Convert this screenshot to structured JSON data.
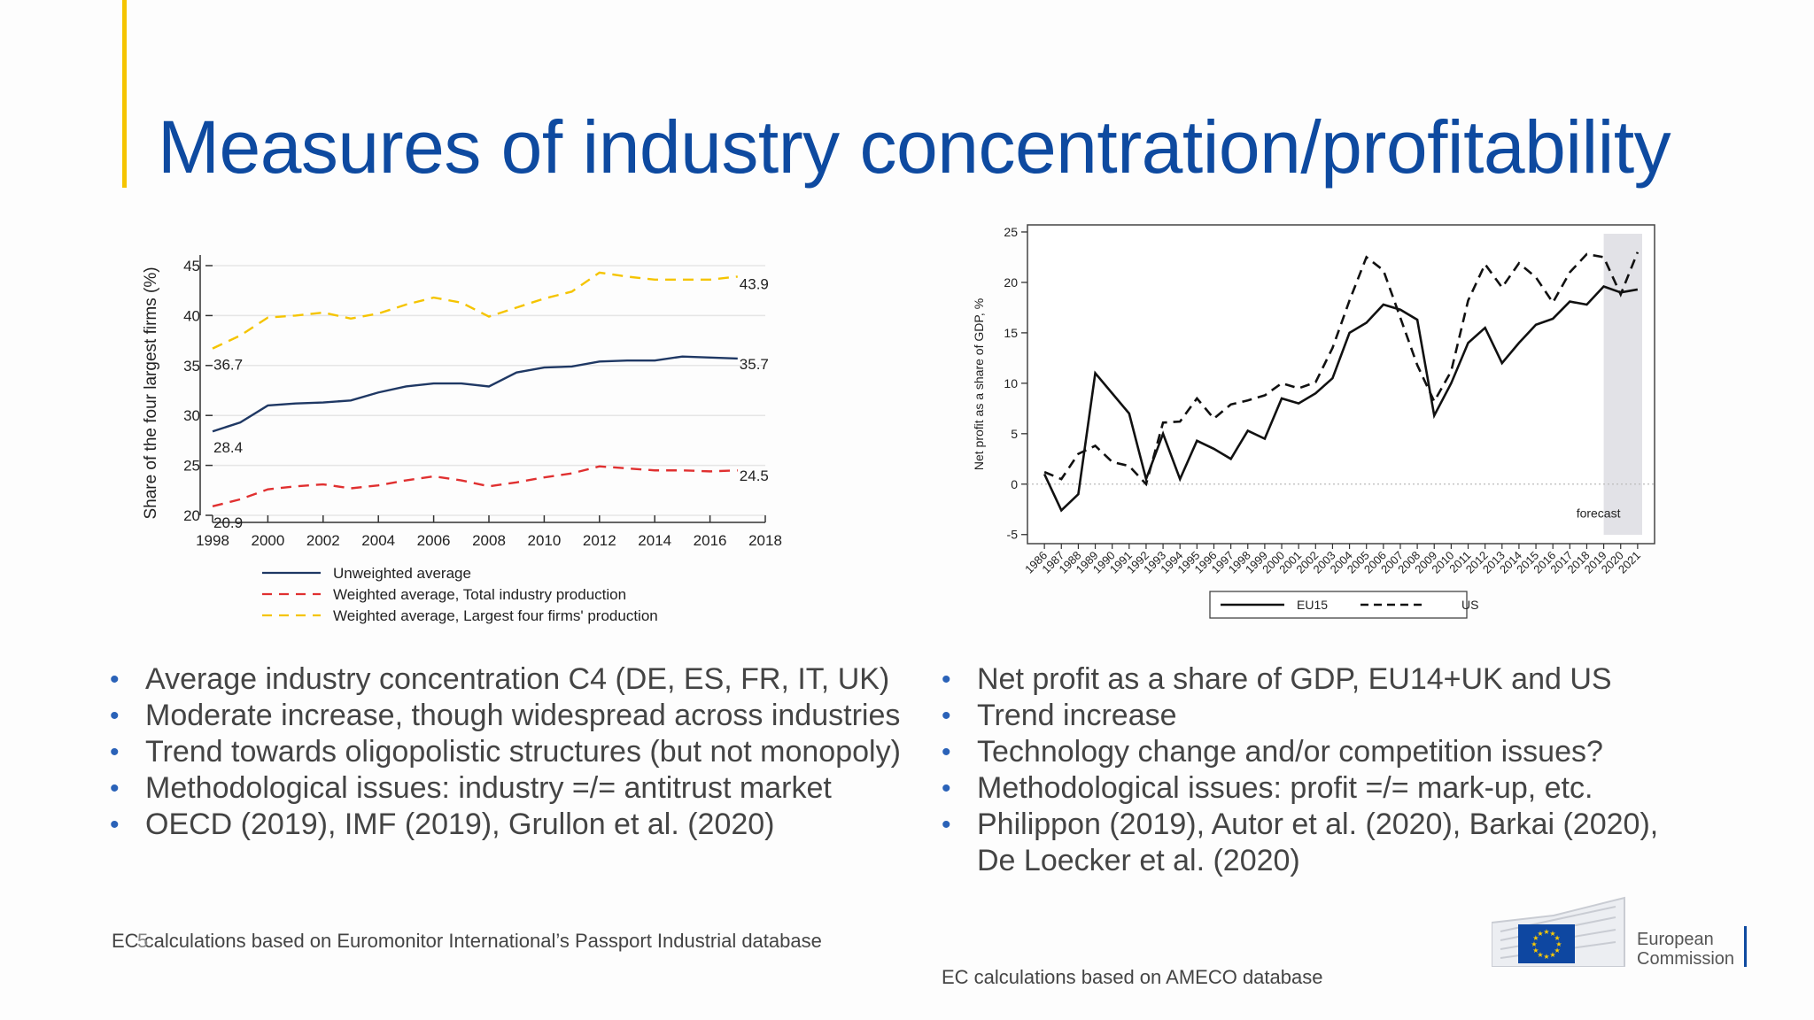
{
  "title": "Measures of industry concentration/profitability",
  "slide_number": "5",
  "chart_data": [
    {
      "type": "line",
      "title": "",
      "ylabel": "Share of the four largest firms   (%)",
      "xlabel": "",
      "x": [
        1998,
        1999,
        2000,
        2001,
        2002,
        2003,
        2004,
        2005,
        2006,
        2007,
        2008,
        2009,
        2010,
        2011,
        2012,
        2013,
        2014,
        2015,
        2016,
        2017
      ],
      "xticks": [
        "1998",
        "2000",
        "2002",
        "2004",
        "2006",
        "2008",
        "2010",
        "2012",
        "2014",
        "2016",
        "2018"
      ],
      "yticks": [
        "20",
        "25",
        "30",
        "35",
        "40",
        "45"
      ],
      "xlim": [
        1998,
        2018
      ],
      "ylim": [
        20,
        45
      ],
      "grid": true,
      "legend_position": "bottom",
      "series": [
        {
          "name": "Unweighted average",
          "color": "#1f3864",
          "dash": "solid",
          "values": [
            28.4,
            29.3,
            31.0,
            31.2,
            31.3,
            31.5,
            32.3,
            32.9,
            33.2,
            33.2,
            32.9,
            34.3,
            34.8,
            34.9,
            35.4,
            35.5,
            35.5,
            35.9,
            35.8,
            35.7
          ],
          "start_label": "28.4",
          "end_label": "35.7"
        },
        {
          "name": "Weighted average, Total industry production",
          "color": "#e03030",
          "dash": "dashed",
          "values": [
            20.9,
            21.6,
            22.6,
            22.9,
            23.1,
            22.7,
            23.0,
            23.5,
            23.9,
            23.5,
            22.9,
            23.3,
            23.8,
            24.2,
            24.9,
            24.7,
            24.5,
            24.5,
            24.4,
            24.5
          ],
          "start_label": "20.9",
          "end_label": "24.5"
        },
        {
          "name": "Weighted average, Largest four firms' production",
          "color": "#f5c400",
          "dash": "dashed",
          "values": [
            36.7,
            38.0,
            39.8,
            40.0,
            40.3,
            39.7,
            40.2,
            41.1,
            41.8,
            41.3,
            39.9,
            40.8,
            41.7,
            42.4,
            44.3,
            43.9,
            43.6,
            43.6,
            43.6,
            43.9
          ],
          "start_label": "36.7",
          "end_label": "43.9"
        }
      ]
    },
    {
      "type": "line",
      "title": "",
      "ylabel": "Net profit as a share of GDP, %",
      "xlabel": "",
      "x": [
        1986,
        1987,
        1988,
        1989,
        1990,
        1991,
        1992,
        1993,
        1994,
        1995,
        1996,
        1997,
        1998,
        1999,
        2000,
        2001,
        2002,
        2003,
        2004,
        2005,
        2006,
        2007,
        2008,
        2009,
        2010,
        2011,
        2012,
        2013,
        2014,
        2015,
        2016,
        2017,
        2018,
        2019,
        2020,
        2021
      ],
      "xticks": [
        "1986",
        "1987",
        "1988",
        "1989",
        "1990",
        "1991",
        "1992",
        "1993",
        "1994",
        "1995",
        "1996",
        "1997",
        "1998",
        "1999",
        "2000",
        "2001",
        "2002",
        "2003",
        "2004",
        "2005",
        "2006",
        "2007",
        "2008",
        "2009",
        "2010",
        "2011",
        "2012",
        "2013",
        "2014",
        "2015",
        "2016",
        "2017",
        "2018",
        "2019",
        "2020",
        "2021"
      ],
      "yticks": [
        "-5",
        "0",
        "5",
        "10",
        "15",
        "20",
        "25"
      ],
      "xlim": [
        1985,
        2022
      ],
      "ylim": [
        -5,
        25
      ],
      "grid": false,
      "legend_position": "bottom",
      "forecast_region": [
        2019,
        2022
      ],
      "forecast_label": "forecast",
      "series": [
        {
          "name": "EU15",
          "color": "#111111",
          "dash": "solid",
          "values": [
            1.0,
            -2.6,
            -1.0,
            11.0,
            9.0,
            7.0,
            0.5,
            5.0,
            0.5,
            4.3,
            3.5,
            2.5,
            5.3,
            4.5,
            8.5,
            8.0,
            9.0,
            10.5,
            15.0,
            16.0,
            17.8,
            17.3,
            16.3,
            6.8,
            10.0,
            14.0,
            15.5,
            12.0,
            14.0,
            15.8,
            16.4,
            18.1,
            17.8,
            19.6,
            19.0,
            19.3
          ]
        },
        {
          "name": "US",
          "color": "#111111",
          "dash": "dashed",
          "values": [
            1.2,
            0.5,
            3.0,
            3.8,
            2.2,
            1.8,
            0.0,
            6.1,
            6.2,
            8.5,
            6.5,
            7.9,
            8.3,
            8.8,
            10.0,
            9.5,
            10.1,
            13.5,
            18.2,
            22.5,
            21.2,
            16.5,
            11.8,
            8.2,
            11.2,
            18.2,
            21.8,
            19.5,
            21.9,
            20.5,
            18.0,
            21.0,
            22.8,
            22.5,
            18.8,
            23.0
          ]
        }
      ]
    }
  ],
  "bullets_left": [
    "Average industry concentration C4 (DE, ES, FR, IT, UK)",
    "Moderate increase, though widespread across industries",
    "Trend towards oligopolistic structures (but not monopoly)",
    "Methodological issues: industry =/= antitrust market",
    "OECD (2019), IMF (2019), Grullon et al. (2020)"
  ],
  "bullets_right": [
    "Net profit as a share of GDP, EU14+UK and US",
    "Trend increase",
    "Technology change and/or competition issues?",
    "Methodological issues: profit =/= mark-up, etc.",
    "Philippon (2019), Autor et al. (2020), Barkai (2020), De Loecker et al. (2020)"
  ],
  "source_left": "EC calculations based on Euromonitor International’s Passport Industrial database",
  "source_right": "EC calculations based on AMECO database",
  "logo": {
    "line1": "European",
    "line2": "Commission",
    "flag_color": "#0e47a1",
    "star_color": "#ffcc00"
  },
  "colors": {
    "title": "#0e4aa0",
    "accent": "#f5c400",
    "bullet": "#2a62b8"
  }
}
